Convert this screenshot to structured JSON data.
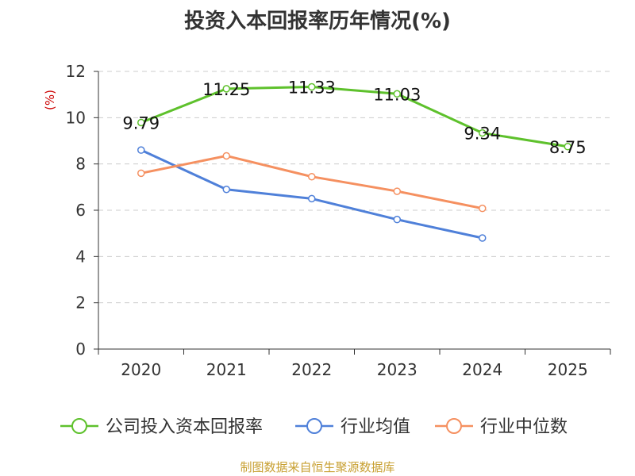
{
  "chart_data": {
    "type": "line",
    "title": "投资入本回报率历年情况(%)",
    "ylabel": "(%)",
    "xlabel": "",
    "categories": [
      "2020",
      "2021",
      "2022",
      "2023",
      "2024",
      "2025"
    ],
    "ylim": [
      0,
      12
    ],
    "yticks": [
      0,
      2,
      4,
      6,
      8,
      10,
      12
    ],
    "grid": true,
    "legend_position": "bottom",
    "series": [
      {
        "name": "公司投入资本回报率",
        "color": "#5ec12c",
        "values": [
          9.79,
          11.25,
          11.33,
          11.03,
          9.34,
          8.75
        ],
        "labels": [
          "9.79",
          "11.25",
          "11.33",
          "11.03",
          "9.34",
          "8.75"
        ]
      },
      {
        "name": "行业均值",
        "color": "#4f80d9",
        "values": [
          8.6,
          6.9,
          6.5,
          5.6,
          4.8,
          null
        ]
      },
      {
        "name": "行业中位数",
        "color": "#f59060",
        "values": [
          7.6,
          8.35,
          7.45,
          6.82,
          6.08,
          null
        ]
      }
    ]
  },
  "footer": {
    "source": "制图数据来自恒生聚源数据库"
  }
}
